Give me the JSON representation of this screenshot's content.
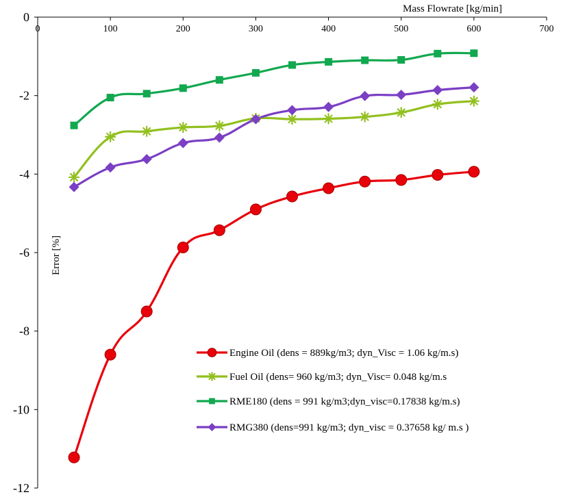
{
  "chart_data": {
    "type": "line",
    "xlabel": "Mass Flowrate [kg/min]",
    "ylabel": "Error [%]",
    "xlim": [
      0,
      700
    ],
    "ylim": [
      -12,
      0
    ],
    "xticks": [
      0,
      100,
      200,
      300,
      400,
      500,
      600,
      700
    ],
    "yticks": [
      0,
      -2,
      -4,
      -6,
      -8,
      -10,
      -12
    ],
    "x_axis_position": "top",
    "grid": false,
    "legend_position": "bottom-right",
    "x": [
      50,
      100,
      150,
      200,
      250,
      300,
      350,
      400,
      450,
      500,
      550,
      600
    ],
    "series": [
      {
        "name": "Engine Oil (dens = 889kg/m3; dyn_Visc = 1.06 kg/m.s)",
        "color": "#e8000b",
        "marker": "circle",
        "values": [
          -11.22,
          -8.6,
          -7.5,
          -5.87,
          -5.43,
          -4.9,
          -4.57,
          -4.36,
          -4.19,
          -4.15,
          -4.02,
          -3.94
        ]
      },
      {
        "name": "Fuel Oil (dens= 960 kg/m3; dyn_Visc= 0.048 kg/m.s",
        "color": "#92c01f",
        "marker": "asterisk",
        "values": [
          -4.08,
          -3.05,
          -2.91,
          -2.81,
          -2.77,
          -2.58,
          -2.6,
          -2.59,
          -2.54,
          -2.43,
          -2.22,
          -2.14
        ]
      },
      {
        "name": "RME180  (dens = 991 kg/m3;dyn_visc=0.17838 kg/m.s)",
        "color": "#12a84f",
        "marker": "square",
        "values": [
          -2.76,
          -2.05,
          -1.95,
          -1.81,
          -1.6,
          -1.42,
          -1.22,
          -1.14,
          -1.1,
          -1.09,
          -0.93,
          -0.92
        ]
      },
      {
        "name": "RMG380  (dens=991 kg/m3; dyn_visc = 0.37658 kg/ m.s )",
        "color": "#7b3fc4",
        "marker": "diamond",
        "values": [
          -4.33,
          -3.83,
          -3.62,
          -3.21,
          -3.07,
          -2.6,
          -2.37,
          -2.29,
          -2.01,
          -1.98,
          -1.86,
          -1.79
        ]
      }
    ]
  }
}
